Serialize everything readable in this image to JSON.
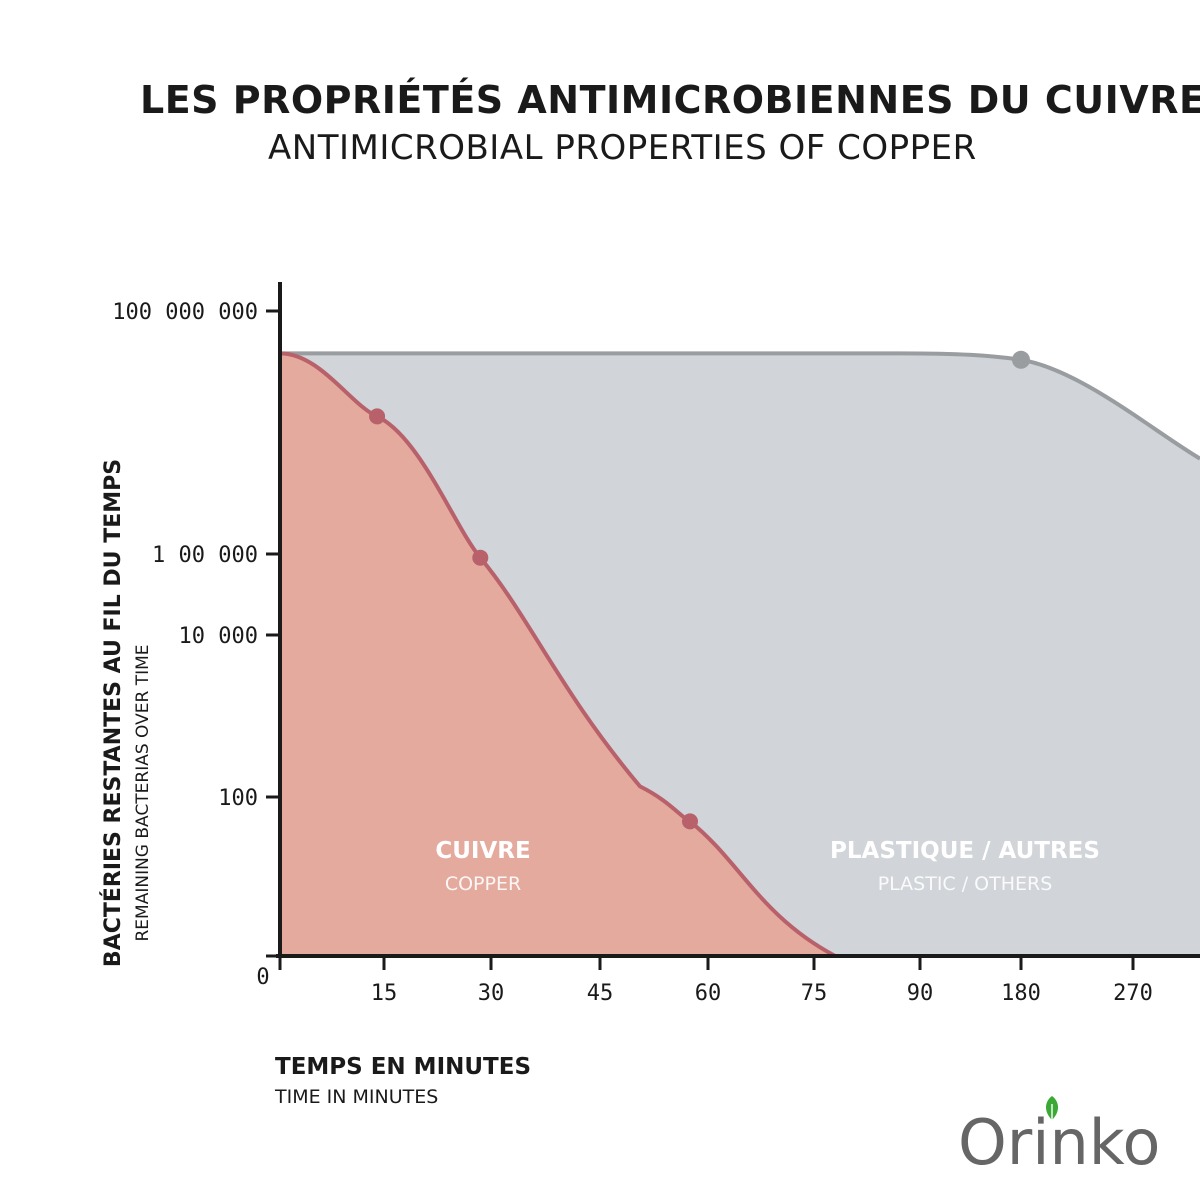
{
  "header": {
    "title": "LES PROPRIÉTÉS ANTIMICROBIENNES DU CUIVRE",
    "subtitle": "ANTIMICROBIAL PROPERTIES OF COPPER"
  },
  "logo": {
    "text": "Orinko",
    "icon": "leaf-icon",
    "leaf_color": "#3aa935"
  },
  "chart_data": {
    "type": "area",
    "ylabel": "BACTÉRIES RESTANTES AU FIL DU TEMPS",
    "ylabel_sub": "REMAINING BACTERIAS OVER TIME",
    "xlabel": "TEMPS EN MINUTES",
    "xlabel_sub": "TIME IN MINUTES",
    "x_categories": [
      "0",
      "15",
      "30",
      "45",
      "60",
      "75",
      "90",
      "180",
      "270"
    ],
    "y_ticks": [
      "100",
      "10 000",
      "1 00 000",
      "100 000 000"
    ],
    "y_tick_values": [
      100,
      10000,
      100000,
      100000000
    ],
    "y_scale": "log",
    "series": [
      {
        "name": "CUIVRE",
        "name_sub": "COPPER",
        "color": "#e5aa9e",
        "line_color": "#b8616a",
        "points": [
          [
            0,
            30000000
          ],
          [
            14,
            5000000
          ],
          [
            28.5,
            90000
          ],
          [
            57.5,
            50
          ],
          [
            78,
            0
          ]
        ],
        "markers": [
          [
            14,
            5000000
          ],
          [
            28.5,
            90000
          ],
          [
            57.5,
            50
          ]
        ]
      },
      {
        "name": "PLASTIQUE / AUTRES",
        "name_sub": "PLASTIC / OTHERS",
        "color": "#d1d4d9",
        "line_color": "#999da0",
        "points": [
          [
            0,
            30000000
          ],
          [
            90,
            30000000
          ],
          [
            180,
            25000000
          ],
          [
            300,
            2000000
          ]
        ],
        "markers": [
          [
            180,
            25000000
          ]
        ]
      }
    ]
  }
}
